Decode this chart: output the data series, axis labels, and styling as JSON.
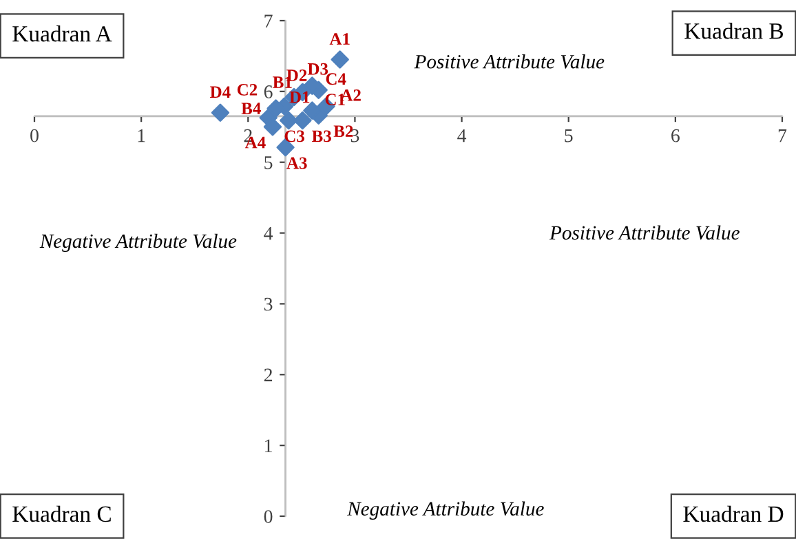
{
  "chart_data": {
    "type": "scatter",
    "x": [
      2.86,
      1.74,
      2.35,
      2.19,
      2.23,
      2.38,
      2.51,
      2.66,
      2.6,
      2.73,
      2.66,
      2.6,
      2.51,
      2.43,
      2.34,
      2.26
    ],
    "series": [
      {
        "color": "#4f81bd",
        "values": [
          6.45,
          5.7,
          5.21,
          5.63,
          5.5,
          5.59,
          5.59,
          5.66,
          5.73,
          5.79,
          6.02,
          6.08,
          5.99,
          5.92,
          5.79,
          5.76
        ]
      }
    ],
    "marker": "diamond",
    "grid": false,
    "legend": false,
    "xlim": [
      0,
      7
    ],
    "ylim": [
      0,
      7
    ],
    "xticks": [
      0,
      1,
      2,
      3,
      4,
      5,
      6,
      7
    ],
    "yticks": [
      0,
      1,
      2,
      3,
      4,
      5,
      6,
      7
    ],
    "ref_lines": [
      {
        "axis": "x",
        "value": 2.35,
        "color": "#bfbfbf"
      },
      {
        "axis": "y",
        "value": 5.65,
        "color": "#bfbfbf"
      }
    ],
    "annotations": [
      "Kuadran A",
      "Kuadran B",
      "Kuadran C",
      "Kuadran D",
      "Positive Attribute Value",
      "Negative Attribute Value",
      "Positive Attribute Value",
      "Negative Attribute Value",
      {
        "text": "A1",
        "x": 2.86,
        "y": 6.45
      },
      {
        "text": "D4",
        "x": 1.74,
        "y": 5.7
      },
      {
        "text": "A3",
        "x": 2.35,
        "y": 5.21
      },
      {
        "text": "B4",
        "x": 2.19,
        "y": 5.63
      },
      {
        "text": "A4",
        "x": 2.23,
        "y": 5.5
      },
      {
        "text": "C3",
        "x": 2.38,
        "y": 5.59
      },
      {
        "text": "B3",
        "x": 2.51,
        "y": 5.59
      },
      {
        "text": "B2",
        "x": 2.66,
        "y": 5.66
      },
      {
        "text": "C1",
        "x": 2.6,
        "y": 5.73
      },
      {
        "text": "A2",
        "x": 2.73,
        "y": 5.79
      },
      {
        "text": "C4",
        "x": 2.66,
        "y": 6.02
      },
      {
        "text": "D3",
        "x": 2.6,
        "y": 6.08
      },
      {
        "text": "D2",
        "x": 2.51,
        "y": 5.99
      },
      {
        "text": "B1",
        "x": 2.43,
        "y": 5.92
      },
      {
        "text": "D1",
        "x": 2.34,
        "y": 5.79
      },
      {
        "text": "C2",
        "x": 2.26,
        "y": 5.76
      }
    ]
  }
}
